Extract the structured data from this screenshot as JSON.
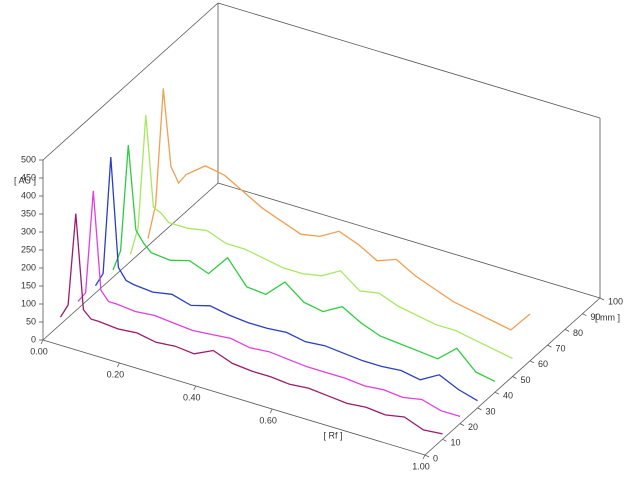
{
  "chart_data": {
    "type": "waterfall",
    "xlabel": "[ Rf ]",
    "ylabel": "[ AU ]",
    "zlabel": "[ mm ]",
    "xlim": [
      0,
      1
    ],
    "ylim": [
      0,
      500
    ],
    "zlim": [
      0,
      100
    ],
    "xticks": [
      {
        "value": 0,
        "label": "0.00"
      },
      {
        "value": 0.2,
        "label": "0.20"
      },
      {
        "value": 0.4,
        "label": "0.40"
      },
      {
        "value": 0.6,
        "label": "0.60"
      },
      {
        "value": 1,
        "label": "1.00"
      }
    ],
    "yticks": [
      0,
      50,
      100,
      150,
      200,
      250,
      300,
      350,
      400,
      450,
      500
    ],
    "zticks": [
      0,
      10,
      20,
      30,
      40,
      50,
      60,
      70,
      80,
      90,
      100
    ],
    "x": [
      0,
      0.02,
      0.04,
      0.06,
      0.08,
      0.1,
      0.15,
      0.2,
      0.25,
      0.3,
      0.35,
      0.4,
      0.45,
      0.5,
      0.55,
      0.6,
      0.65,
      0.7,
      0.75,
      0.8,
      0.85,
      0.9,
      0.95,
      1.0
    ],
    "series": [
      {
        "z": 10,
        "color": "#9b1b6e",
        "values": [
          20,
          60,
          320,
          60,
          40,
          40,
          35,
          40,
          30,
          35,
          30,
          55,
          35,
          30,
          30,
          25,
          30,
          25,
          20,
          25,
          20,
          30,
          10,
          15
        ]
      },
      {
        "z": 20,
        "color": "#e040e0",
        "values": [
          20,
          50,
          340,
          70,
          45,
          45,
          40,
          45,
          40,
          35,
          40,
          45,
          35,
          40,
          35,
          30,
          30,
          30,
          25,
          30,
          25,
          35,
          20,
          20
        ]
      },
      {
        "z": 30,
        "color": "#2a3fc4",
        "values": [
          20,
          60,
          390,
          90,
          60,
          55,
          50,
          60,
          45,
          60,
          50,
          45,
          45,
          50,
          40,
          45,
          40,
          35,
          35,
          40,
          30,
          60,
          35,
          20
        ]
      },
      {
        "z": 40,
        "color": "#2ecc40",
        "values": [
          20,
          80,
          380,
          150,
          120,
          100,
          95,
          110,
          90,
          150,
          85,
          80,
          130,
          90,
          80,
          110,
          80,
          60,
          55,
          50,
          45,
          90,
          40,
          30
        ]
      },
      {
        "z": 50,
        "color": "#a8e860",
        "values": [
          20,
          100,
          420,
          170,
          160,
          140,
          140,
          150,
          130,
          130,
          120,
          110,
          110,
          120,
          150,
          110,
          120,
          100,
          90,
          80,
          80,
          70,
          60,
          50
        ]
      },
      {
        "z": 60,
        "color": "#f0a050",
        "values": [
          20,
          120,
          450,
          240,
          200,
          230,
          270,
          260,
          230,
          200,
          180,
          160,
          170,
          200,
          180,
          150,
          170,
          140,
          120,
          100,
          90,
          80,
          70,
          130
        ]
      }
    ]
  }
}
